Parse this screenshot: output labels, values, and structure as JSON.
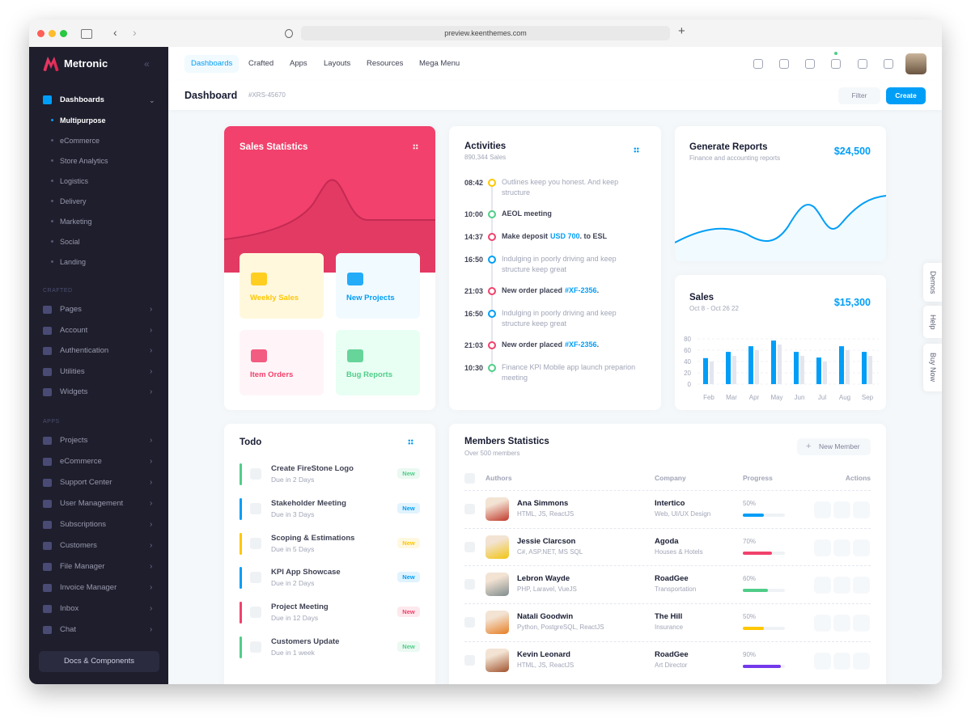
{
  "browser": {
    "url": "preview.keenthemes.com"
  },
  "sidebar": {
    "brand": "Metronic",
    "menu": {
      "label": "Dashboards",
      "items": [
        "Multipurpose",
        "eCommerce",
        "Store Analytics",
        "Logistics",
        "Delivery",
        "Marketing",
        "Social",
        "Landing"
      ]
    },
    "sections": [
      {
        "title": "CRAFTED",
        "items": [
          "Pages",
          "Account",
          "Authentication",
          "Utilities",
          "Widgets"
        ]
      },
      {
        "title": "APPS",
        "items": [
          "Projects",
          "eCommerce",
          "Support Center",
          "User Management",
          "Subscriptions",
          "Customers",
          "File Manager",
          "Invoice Manager",
          "Inbox",
          "Chat"
        ]
      }
    ],
    "button": "Docs & Components"
  },
  "header": {
    "nav": [
      "Dashboards",
      "Crafted",
      "Apps",
      "Layouts",
      "Resources",
      "Mega Menu"
    ]
  },
  "toolbar": {
    "title": "Dashboard",
    "code": "#XRS-45670",
    "filter": "Filter",
    "create": "Create"
  },
  "side_tabs": [
    "Demos",
    "Help",
    "Buy Now"
  ],
  "sales_statistics": {
    "title": "Sales Statistics",
    "tiles": [
      {
        "label": "Weekly Sales",
        "color": "#ffc700",
        "background": "#fff8dd"
      },
      {
        "label": "New Projects",
        "color": "#009ef7",
        "background": "#f1faff"
      },
      {
        "label": "Item Orders",
        "color": "#f1416c",
        "background": "#fff5f8"
      },
      {
        "label": "Bug Reports",
        "color": "#50cd89",
        "background": "#e8fff3"
      }
    ]
  },
  "activities": {
    "title": "Activities",
    "subtitle": "890,344 Sales",
    "items": [
      {
        "time": "08:42",
        "text": "Outlines keep you honest. And keep structure",
        "color": "#ffc700",
        "muted": true
      },
      {
        "time": "10:00",
        "text": "AEOL meeting",
        "color": "#50cd89",
        "muted": false
      },
      {
        "time": "14:37",
        "text": "Make deposit",
        "link": "USD 700",
        "after": ". to ESL",
        "color": "#f1416c",
        "muted": false
      },
      {
        "time": "16:50",
        "text": "Indulging in poorly driving and keep structure keep great",
        "color": "#009ef7",
        "muted": true
      },
      {
        "time": "21:03",
        "text": "New order placed",
        "link": "#XF-2356",
        "after": ".",
        "color": "#f1416c",
        "muted": false
      },
      {
        "time": "16:50",
        "text": "Indulging in poorly driving and keep structure keep great",
        "color": "#009ef7",
        "muted": true
      },
      {
        "time": "21:03",
        "text": "New order placed",
        "link": "#XF-2356",
        "after": ".",
        "color": "#f1416c",
        "muted": false
      },
      {
        "time": "10:30",
        "text": "Finance KPI Mobile app launch preparion meeting",
        "color": "#50cd89",
        "muted": true
      }
    ]
  },
  "reports": {
    "title": "Generate Reports",
    "subtitle": "Finance and accounting reports",
    "amount": "$24,500"
  },
  "chart_data": {
    "type": "bar",
    "title": "Sales",
    "subtitle": "Oct 8 - Oct 26 22",
    "total": "$15,300",
    "categories": [
      "Feb",
      "Mar",
      "Apr",
      "May",
      "Jun",
      "Jul",
      "Aug",
      "Sep"
    ],
    "series": [
      {
        "color": "#009ef7",
        "values": [
          46,
          57,
          67,
          77,
          57,
          47,
          67,
          57
        ]
      },
      {
        "color": "#e4e6ef",
        "values": [
          40,
          50,
          60,
          70,
          50,
          40,
          60,
          50
        ]
      }
    ],
    "ylim": [
      0,
      80
    ],
    "yticks": [
      0,
      20,
      40,
      60,
      80
    ],
    "grid": true
  },
  "todo": {
    "title": "Todo",
    "items": [
      {
        "title": "Create FireStone Logo",
        "due": "Due in 2 Days",
        "badge": "New",
        "color": "#50cd89"
      },
      {
        "title": "Stakeholder Meeting",
        "due": "Due in 3 Days",
        "badge": "New",
        "color": "#009ef7"
      },
      {
        "title": "Scoping & Estimations",
        "due": "Due in 5 Days",
        "badge": "New",
        "color": "#ffc700"
      },
      {
        "title": "KPI App Showcase",
        "due": "Due in 2 Days",
        "badge": "New",
        "color": "#009ef7"
      },
      {
        "title": "Project Meeting",
        "due": "Due in 12 Days",
        "badge": "New",
        "color": "#f1416c"
      },
      {
        "title": "Customers Update",
        "due": "Due in 1 week",
        "badge": "New",
        "color": "#50cd89"
      }
    ]
  },
  "members": {
    "title": "Members Statistics",
    "subtitle": "Over 500 members",
    "button": "New Member",
    "columns": [
      "Authors",
      "Company",
      "Progress",
      "Actions"
    ],
    "rows": [
      {
        "name": "Ana Simmons",
        "skills": "HTML, JS, ReactJS",
        "company": "Intertico",
        "field": "Web, UI/UX Design",
        "progress": {
          "value": 50,
          "label": "50%"
        },
        "color": "#009ef7"
      },
      {
        "name": "Jessie Clarcson",
        "skills": "C#, ASP.NET, MS SQL",
        "company": "Agoda",
        "field": "Houses & Hotels",
        "progress": {
          "value": 70,
          "label": "70%"
        },
        "color": "#f1416c"
      },
      {
        "name": "Lebron Wayde",
        "skills": "PHP, Laravel, VueJS",
        "company": "RoadGee",
        "field": "Transportation",
        "progress": {
          "value": 60,
          "label": "60%"
        },
        "color": "#50cd89"
      },
      {
        "name": "Natali Goodwin",
        "skills": "Python, PostgreSQL, ReactJS",
        "company": "The Hill",
        "field": "Insurance",
        "progress": {
          "value": 50,
          "label": "50%"
        },
        "color": "#ffc700"
      },
      {
        "name": "Kevin Leonard",
        "skills": "HTML, JS, ReactJS",
        "company": "RoadGee",
        "field": "Art Director",
        "progress": {
          "value": 90,
          "label": "90%"
        },
        "color": "#7239ea"
      }
    ]
  }
}
